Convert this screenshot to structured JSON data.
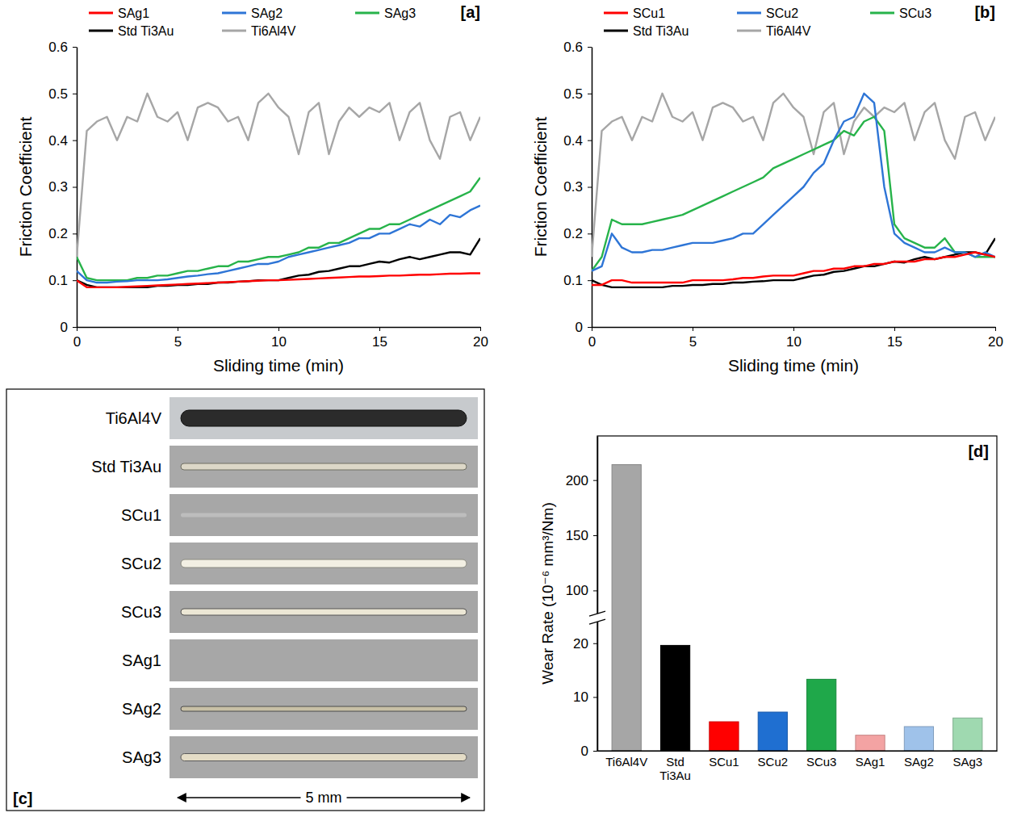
{
  "chart_data": [
    {
      "type": "line",
      "title": "[a]",
      "xlabel": "Sliding time (min)",
      "ylabel": "Friction Coefficient",
      "legend": "top",
      "xlim": [
        0,
        20
      ],
      "xticks": [
        0,
        5,
        10,
        15,
        20
      ],
      "ylim": [
        0,
        0.6
      ],
      "yticks": [
        0,
        0.1,
        0.2,
        0.3,
        0.4,
        0.5,
        0.6
      ],
      "x": [
        0,
        0.5,
        1,
        1.5,
        2,
        2.5,
        3,
        3.5,
        4,
        4.5,
        5,
        5.5,
        6,
        6.5,
        7,
        7.5,
        8,
        8.5,
        9,
        9.5,
        10,
        10.5,
        11,
        11.5,
        12,
        12.5,
        13,
        13.5,
        14,
        14.5,
        15,
        15.5,
        16,
        16.5,
        17,
        17.5,
        18,
        18.5,
        19,
        19.5,
        20
      ],
      "series": [
        {
          "name": "SAg1",
          "color": "#ff0000",
          "values": [
            0.1,
            0.085,
            0.085,
            0.085,
            0.085,
            0.086,
            0.087,
            0.088,
            0.089,
            0.09,
            0.091,
            0.092,
            0.093,
            0.094,
            0.095,
            0.096,
            0.097,
            0.098,
            0.099,
            0.1,
            0.1,
            0.101,
            0.102,
            0.103,
            0.104,
            0.105,
            0.106,
            0.107,
            0.108,
            0.108,
            0.109,
            0.11,
            0.11,
            0.111,
            0.112,
            0.112,
            0.113,
            0.114,
            0.114,
            0.115,
            0.115
          ]
        },
        {
          "name": "SAg2",
          "color": "#2e75d6",
          "values": [
            0.12,
            0.1,
            0.095,
            0.095,
            0.097,
            0.098,
            0.1,
            0.1,
            0.1,
            0.102,
            0.105,
            0.108,
            0.11,
            0.113,
            0.115,
            0.12,
            0.125,
            0.13,
            0.135,
            0.135,
            0.14,
            0.15,
            0.155,
            0.16,
            0.165,
            0.17,
            0.175,
            0.18,
            0.19,
            0.19,
            0.2,
            0.2,
            0.21,
            0.22,
            0.215,
            0.23,
            0.22,
            0.24,
            0.235,
            0.25,
            0.26
          ]
        },
        {
          "name": "SAg3",
          "color": "#27b34a",
          "values": [
            0.15,
            0.105,
            0.1,
            0.1,
            0.1,
            0.1,
            0.105,
            0.105,
            0.11,
            0.11,
            0.115,
            0.12,
            0.12,
            0.125,
            0.13,
            0.13,
            0.14,
            0.14,
            0.145,
            0.15,
            0.15,
            0.155,
            0.16,
            0.17,
            0.17,
            0.18,
            0.18,
            0.19,
            0.2,
            0.21,
            0.21,
            0.22,
            0.22,
            0.23,
            0.24,
            0.25,
            0.26,
            0.27,
            0.28,
            0.29,
            0.32
          ]
        },
        {
          "name": "Std Ti3Au",
          "color": "#000000",
          "values": [
            0.1,
            0.09,
            0.085,
            0.085,
            0.085,
            0.085,
            0.085,
            0.085,
            0.088,
            0.088,
            0.09,
            0.09,
            0.092,
            0.092,
            0.095,
            0.095,
            0.097,
            0.098,
            0.1,
            0.1,
            0.1,
            0.105,
            0.11,
            0.112,
            0.118,
            0.12,
            0.125,
            0.13,
            0.13,
            0.135,
            0.14,
            0.138,
            0.145,
            0.15,
            0.145,
            0.15,
            0.155,
            0.16,
            0.16,
            0.155,
            0.19
          ]
        },
        {
          "name": "Ti6Al4V",
          "color": "#a6a6a6",
          "values": [
            0.15,
            0.42,
            0.44,
            0.45,
            0.4,
            0.45,
            0.44,
            0.5,
            0.45,
            0.44,
            0.46,
            0.4,
            0.47,
            0.48,
            0.47,
            0.44,
            0.45,
            0.4,
            0.48,
            0.5,
            0.47,
            0.45,
            0.37,
            0.46,
            0.48,
            0.37,
            0.44,
            0.47,
            0.45,
            0.47,
            0.46,
            0.48,
            0.4,
            0.46,
            0.48,
            0.4,
            0.36,
            0.45,
            0.46,
            0.4,
            0.45
          ]
        }
      ]
    },
    {
      "type": "line",
      "title": "[b]",
      "xlabel": "Sliding time (min)",
      "ylabel": "Friction Coefficient",
      "legend": "top",
      "xlim": [
        0,
        20
      ],
      "xticks": [
        0,
        5,
        10,
        15,
        20
      ],
      "ylim": [
        0,
        0.6
      ],
      "yticks": [
        0,
        0.1,
        0.2,
        0.3,
        0.4,
        0.5,
        0.6
      ],
      "x": [
        0,
        0.5,
        1,
        1.5,
        2,
        2.5,
        3,
        3.5,
        4,
        4.5,
        5,
        5.5,
        6,
        6.5,
        7,
        7.5,
        8,
        8.5,
        9,
        9.5,
        10,
        10.5,
        11,
        11.5,
        12,
        12.5,
        13,
        13.5,
        14,
        14.5,
        15,
        15.5,
        16,
        16.5,
        17,
        17.5,
        18,
        18.5,
        19,
        19.5,
        20
      ],
      "series": [
        {
          "name": "SCu1",
          "color": "#ff0000",
          "values": [
            0.09,
            0.09,
            0.1,
            0.1,
            0.095,
            0.095,
            0.095,
            0.095,
            0.095,
            0.095,
            0.1,
            0.1,
            0.1,
            0.1,
            0.102,
            0.105,
            0.105,
            0.108,
            0.11,
            0.11,
            0.11,
            0.115,
            0.12,
            0.12,
            0.125,
            0.125,
            0.13,
            0.13,
            0.135,
            0.135,
            0.14,
            0.14,
            0.14,
            0.145,
            0.145,
            0.15,
            0.15,
            0.155,
            0.16,
            0.155,
            0.15
          ]
        },
        {
          "name": "SCu2",
          "color": "#2e75d6",
          "values": [
            0.12,
            0.13,
            0.2,
            0.17,
            0.16,
            0.16,
            0.165,
            0.165,
            0.17,
            0.175,
            0.18,
            0.18,
            0.18,
            0.185,
            0.19,
            0.2,
            0.2,
            0.22,
            0.24,
            0.26,
            0.28,
            0.3,
            0.33,
            0.35,
            0.4,
            0.44,
            0.45,
            0.5,
            0.48,
            0.3,
            0.2,
            0.18,
            0.17,
            0.16,
            0.16,
            0.17,
            0.16,
            0.16,
            0.15,
            0.16,
            0.15
          ]
        },
        {
          "name": "SCu3",
          "color": "#27b34a",
          "values": [
            0.12,
            0.15,
            0.23,
            0.22,
            0.22,
            0.22,
            0.225,
            0.23,
            0.235,
            0.24,
            0.25,
            0.26,
            0.27,
            0.28,
            0.29,
            0.3,
            0.31,
            0.32,
            0.34,
            0.35,
            0.36,
            0.37,
            0.38,
            0.39,
            0.4,
            0.42,
            0.41,
            0.44,
            0.45,
            0.42,
            0.22,
            0.19,
            0.18,
            0.17,
            0.17,
            0.19,
            0.16,
            0.16,
            0.15,
            0.15,
            0.15
          ]
        },
        {
          "name": "Std Ti3Au",
          "color": "#000000",
          "values": [
            0.1,
            0.09,
            0.085,
            0.085,
            0.085,
            0.085,
            0.085,
            0.085,
            0.088,
            0.088,
            0.09,
            0.09,
            0.092,
            0.092,
            0.095,
            0.095,
            0.097,
            0.098,
            0.1,
            0.1,
            0.1,
            0.105,
            0.11,
            0.112,
            0.118,
            0.12,
            0.125,
            0.13,
            0.13,
            0.135,
            0.14,
            0.138,
            0.145,
            0.15,
            0.145,
            0.15,
            0.155,
            0.16,
            0.16,
            0.155,
            0.19
          ]
        },
        {
          "name": "Ti6Al4V",
          "color": "#a6a6a6",
          "values": [
            0.15,
            0.42,
            0.44,
            0.45,
            0.4,
            0.45,
            0.44,
            0.5,
            0.45,
            0.44,
            0.46,
            0.4,
            0.47,
            0.48,
            0.47,
            0.44,
            0.45,
            0.4,
            0.48,
            0.5,
            0.47,
            0.45,
            0.37,
            0.46,
            0.48,
            0.37,
            0.44,
            0.47,
            0.45,
            0.47,
            0.46,
            0.48,
            0.4,
            0.46,
            0.48,
            0.4,
            0.36,
            0.45,
            0.46,
            0.4,
            0.45
          ]
        }
      ]
    },
    {
      "type": "bar",
      "title": "[d]",
      "ylabel": "Wear Rate (10⁻⁶ mm³/Nm)",
      "categories": [
        "Ti6Al4V",
        "Std Ti3Au",
        "SCu1",
        "SCu2",
        "SCu3",
        "SAg1",
        "SAg2",
        "SAg3"
      ],
      "values": [
        214,
        19.6,
        5.4,
        7.2,
        13.3,
        2.9,
        4.5,
        6.1
      ],
      "colors": [
        "#a6a6a6",
        "#000000",
        "#ff0000",
        "#1f6fd1",
        "#1fa84a",
        "#f3a3a3",
        "#9fc2ea",
        "#9fd9b0"
      ],
      "ylim": [
        0,
        240
      ],
      "yticks": [
        0,
        10,
        20,
        100,
        150,
        200
      ],
      "ybreak": [
        24,
        79
      ]
    }
  ],
  "wear_tracks": {
    "label": "[c]",
    "samples": [
      "Ti6Al4V",
      "Std Ti3Au",
      "SCu1",
      "SCu2",
      "SCu3",
      "SAg1",
      "SAg2",
      "SAg3"
    ],
    "scale_bar": "5 mm"
  }
}
